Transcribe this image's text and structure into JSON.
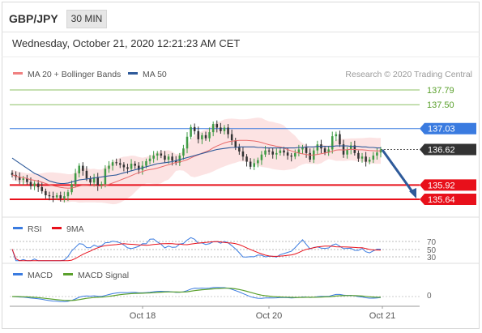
{
  "header": {
    "symbol": "GBP/JPY",
    "timeframe": "30 MIN",
    "datetime": "Wednesday, October 21, 2020 12:21:23 AM CET"
  },
  "chart_data": [
    {
      "type": "line",
      "panel": "price",
      "legend": [
        {
          "name": "MA 20 + Bollinger Bands",
          "color": "#f08080"
        },
        {
          "name": "MA 50",
          "color": "#2e5a9a"
        }
      ],
      "credit": "Research © 2020 Trading Central",
      "ylim": [
        135.2,
        138.0
      ],
      "price_levels": [
        {
          "value": 137.79,
          "label": "137.79",
          "color": "#8cc063",
          "style": "text"
        },
        {
          "value": 137.5,
          "label": "137.50",
          "color": "#8cc063",
          "style": "text"
        },
        {
          "value": 137.03,
          "label": "137.03",
          "color": "#3a7be0",
          "style": "tag"
        },
        {
          "value": 136.62,
          "label": "136.62",
          "color": "#333333",
          "style": "dotted"
        },
        {
          "value": 135.92,
          "label": "135.92",
          "color": "#e8101b",
          "style": "tag"
        },
        {
          "value": 135.64,
          "label": "135.64",
          "color": "#e8101b",
          "style": "tag"
        }
      ],
      "closes": [
        136.12,
        136.08,
        136.02,
        136.05,
        135.98,
        135.9,
        135.95,
        135.88,
        135.8,
        135.72,
        135.7,
        135.68,
        135.72,
        135.66,
        135.7,
        135.78,
        135.94,
        136.15,
        136.3,
        136.2,
        136.05,
        135.97,
        136.07,
        135.9,
        135.94,
        136.24,
        136.3,
        136.37,
        136.35,
        136.32,
        136.27,
        136.24,
        136.34,
        136.3,
        136.22,
        136.3,
        136.39,
        136.44,
        136.5,
        136.54,
        136.5,
        136.42,
        136.48,
        136.4,
        136.36,
        136.5,
        136.64,
        136.87,
        137.06,
        136.98,
        136.82,
        136.9,
        136.84,
        136.96,
        137.12,
        137.05,
        136.98,
        137.05,
        136.92,
        136.8,
        136.66,
        136.58,
        136.48,
        136.38,
        136.28,
        136.35,
        136.41,
        136.52,
        136.6,
        136.58,
        136.52,
        136.55,
        136.6,
        136.56,
        136.5,
        136.48,
        136.55,
        136.62,
        136.66,
        136.55,
        136.42,
        136.6,
        136.72,
        136.64,
        136.56,
        136.62,
        136.88,
        136.92,
        136.72,
        136.52,
        136.62,
        136.7,
        136.55,
        136.44,
        136.48,
        136.38,
        136.42,
        136.5,
        136.56,
        136.62
      ],
      "ma50": [
        136.45,
        136.4,
        136.35,
        136.3,
        136.25,
        136.2,
        136.15,
        136.12,
        136.08,
        136.04,
        136.0,
        135.98,
        135.96,
        135.95,
        135.95,
        135.96,
        135.98,
        136.0,
        136.02,
        136.03,
        136.04,
        136.05,
        136.06,
        136.07,
        136.08,
        136.09,
        136.1,
        136.11,
        136.12,
        136.14,
        136.16,
        136.18,
        136.2,
        136.22,
        136.24,
        136.26,
        136.28,
        136.3,
        136.32,
        136.34,
        136.35,
        136.36,
        136.37,
        136.38,
        136.4,
        136.42,
        136.44,
        136.46,
        136.48,
        136.5,
        136.52,
        136.54,
        136.56,
        136.58,
        136.6,
        136.62,
        136.63,
        136.64,
        136.65,
        136.66,
        136.66,
        136.67,
        136.67,
        136.67,
        136.67,
        136.67,
        136.66,
        136.66,
        136.65,
        136.65,
        136.65,
        136.65,
        136.65,
        136.65,
        136.65,
        136.65,
        136.65,
        136.66,
        136.66,
        136.67,
        136.67,
        136.67,
        136.68,
        136.68,
        136.68,
        136.68,
        136.68,
        136.69,
        136.69,
        136.69,
        136.69,
        136.68,
        136.68,
        136.68,
        136.67,
        136.67,
        136.66,
        136.66,
        136.65,
        136.65
      ]
    },
    {
      "type": "line",
      "panel": "rsi",
      "legend": [
        {
          "name": "RSI",
          "color": "#3a7be0"
        },
        {
          "name": "9MA",
          "color": "#e8101b"
        }
      ],
      "yticks": [
        "70",
        "50",
        "30"
      ],
      "ylim": [
        30,
        70
      ]
    },
    {
      "type": "line",
      "panel": "macd",
      "legend": [
        {
          "name": "MACD",
          "color": "#3a7be0"
        },
        {
          "name": "MACD Signal",
          "color": "#5aa02c"
        }
      ],
      "yticks": [
        "0"
      ]
    }
  ],
  "x_axis": {
    "ticks": [
      "Oct 18",
      "Oct 20",
      "Oct 21"
    ]
  }
}
